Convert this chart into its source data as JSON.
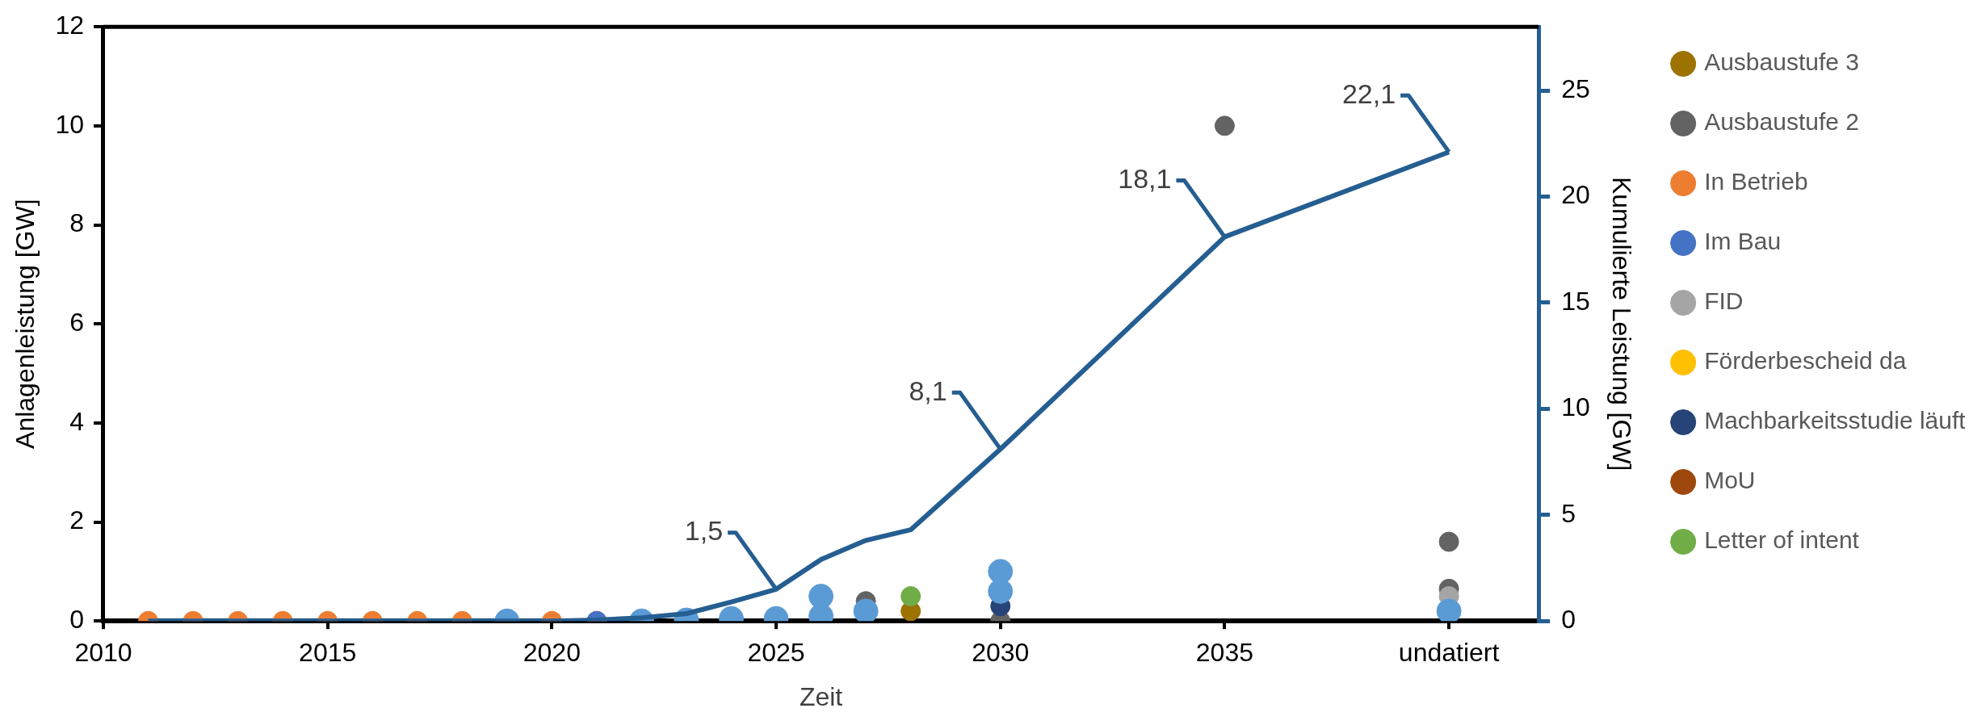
{
  "chart_data": {
    "type": "scatter",
    "xlabel": "Zeit",
    "ylabel": "Anlagenleistung [GW]",
    "y2label": "Kumulierte Leistung [GW]",
    "xlim": [
      2010,
      2042
    ],
    "xticks": [
      2010,
      2015,
      2020,
      2025,
      2030,
      2035,
      {
        "value": 2040,
        "label": "undatiert"
      }
    ],
    "ylim": [
      0,
      12
    ],
    "yticks": [
      0,
      2,
      4,
      6,
      8,
      10,
      12
    ],
    "y2lim": [
      0,
      28
    ],
    "y2ticks": [
      0,
      5,
      10,
      15,
      20,
      25
    ],
    "grid": false,
    "legend": "right",
    "marker": "circle",
    "series": [
      {
        "type": "line",
        "axis": "y2",
        "marker": "none",
        "color": "#255e91",
        "x": [
          2011,
          2012,
          2013,
          2014,
          2015,
          2016,
          2017,
          2018,
          2019,
          2020,
          2021,
          2022,
          2023,
          2024,
          2025,
          2026,
          2027,
          2028,
          2030,
          2035,
          2040
        ],
        "values": [
          0,
          0,
          0,
          0,
          0,
          0,
          0,
          0,
          0,
          0,
          0.05,
          0.15,
          0.35,
          0.9,
          1.5,
          2.9,
          3.8,
          4.3,
          8.1,
          18.1,
          22.1
        ],
        "value_labels": [
          null,
          null,
          null,
          null,
          null,
          null,
          null,
          null,
          null,
          null,
          null,
          null,
          null,
          null,
          "1,5",
          null,
          null,
          null,
          "8,1",
          "18,1",
          "22,1"
        ]
      },
      {
        "name": "Ausbaustufe 3",
        "color": "#9c7200",
        "x": [
          2028
        ],
        "values": [
          0.2
        ]
      },
      {
        "name": "Ausbaustufe 2",
        "color": "#636363",
        "x": [
          2027,
          2030,
          2035,
          2040,
          2040
        ],
        "values": [
          0.4,
          0,
          10,
          1.6,
          0.65
        ]
      },
      {
        "name": "In Betrieb",
        "color": "#ed7d31",
        "x": [
          2011,
          2012,
          2013,
          2014,
          2015,
          2016,
          2017,
          2018,
          2020,
          2021
        ],
        "values": [
          0,
          0,
          0,
          0,
          0,
          0,
          0,
          0,
          0,
          0
        ]
      },
      {
        "name": "Im Bau",
        "color": "#4472c4",
        "x": [
          2021
        ],
        "values": [
          0
        ]
      },
      {
        "name": "FID",
        "color": "#a5a5a5",
        "x": [
          2040
        ],
        "values": [
          0.5
        ]
      },
      {
        "name": "Förderbescheid da",
        "color": "#ffc000"
      },
      {
        "name": "Machbarkeitsstudie läuft",
        "color": "#264478",
        "x": [
          2030
        ],
        "values": [
          0.3
        ]
      },
      {
        "name": "MoU",
        "color": "#9e480e"
      },
      {
        "name": "Letter of intent",
        "color": "#70ad47",
        "x": [
          2028
        ],
        "values": [
          0.5
        ]
      },
      {
        "color": "#5b9bd5",
        "x": [
          2019,
          2022,
          2023,
          2024,
          2025,
          2026,
          2026,
          2027,
          2030,
          2030,
          2040
        ],
        "values": [
          0,
          0,
          0.02,
          0.05,
          0.05,
          0.1,
          0.5,
          0.2,
          0.6,
          1.0,
          0.2
        ]
      }
    ]
  }
}
